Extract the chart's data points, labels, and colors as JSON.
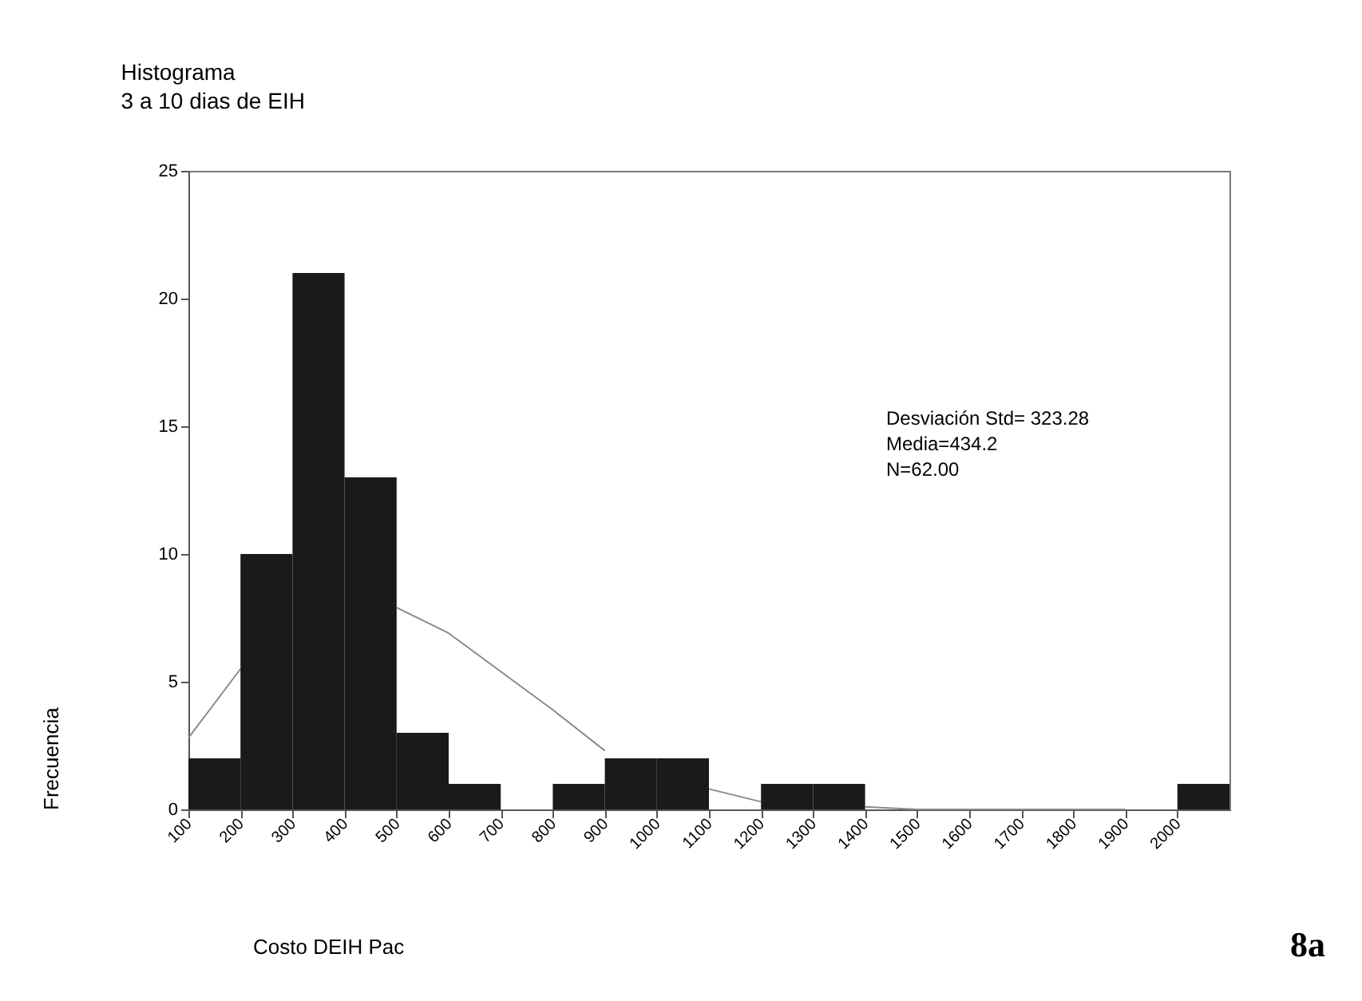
{
  "chart_data": {
    "type": "histogram",
    "title": "Histograma",
    "subtitle": "3 a 10 dias de EIH",
    "xlabel": "Costo DEIH Pac",
    "ylabel": "Frecuencia",
    "series": [
      {
        "color": "#1a1a1a",
        "bins": [
          100,
          200,
          300,
          400,
          500,
          600,
          700,
          800,
          900,
          1000,
          1100,
          1200,
          1300,
          1400,
          1500,
          1600,
          1700,
          1800,
          1900,
          2000,
          2100
        ],
        "values": [
          2,
          10,
          21,
          13,
          3,
          1,
          0,
          1,
          2,
          2,
          0,
          1,
          1,
          0,
          0,
          0,
          0,
          0,
          0,
          1
        ]
      },
      {
        "type": "line",
        "color": "#8a8a8a",
        "x": [
          100,
          200,
          300,
          400,
          500,
          600,
          700,
          800,
          900,
          1000,
          1100,
          1200,
          1300,
          1400,
          1500,
          1600,
          1700,
          1800,
          1900
        ],
        "values": [
          2.8,
          5.5,
          null,
          null,
          7.9,
          6.9,
          5.4,
          3.9,
          2.3,
          null,
          0.8,
          0.3,
          null,
          0.1,
          0,
          0,
          0,
          0,
          0
        ]
      }
    ],
    "xlim": [
      100,
      2100
    ],
    "xticks": [
      100,
      200,
      300,
      400,
      500,
      600,
      700,
      800,
      900,
      1000,
      1100,
      1200,
      1300,
      1400,
      1500,
      1600,
      1700,
      1800,
      1900,
      2000
    ],
    "ylim": [
      0,
      25
    ],
    "yticks": [
      0,
      5,
      10,
      15,
      20,
      25
    ],
    "grid": false,
    "annotations": [
      "Desviación Std= 323.28",
      "Media=434.2",
      "N=62.00",
      "8a"
    ]
  }
}
